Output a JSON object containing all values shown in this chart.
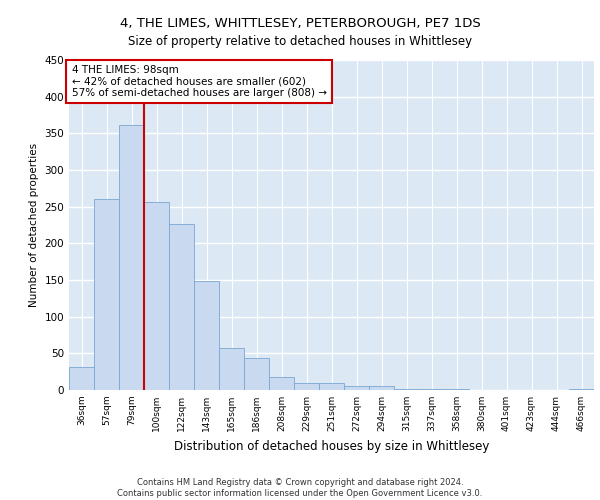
{
  "title_line1": "4, THE LIMES, WHITTLESEY, PETERBOROUGH, PE7 1DS",
  "title_line2": "Size of property relative to detached houses in Whittlesey",
  "xlabel": "Distribution of detached houses by size in Whittlesey",
  "ylabel": "Number of detached properties",
  "categories": [
    "36sqm",
    "57sqm",
    "79sqm",
    "100sqm",
    "122sqm",
    "143sqm",
    "165sqm",
    "186sqm",
    "208sqm",
    "229sqm",
    "251sqm",
    "272sqm",
    "294sqm",
    "315sqm",
    "337sqm",
    "358sqm",
    "380sqm",
    "401sqm",
    "423sqm",
    "444sqm",
    "466sqm"
  ],
  "values": [
    31,
    260,
    362,
    257,
    226,
    148,
    57,
    44,
    18,
    10,
    10,
    6,
    5,
    2,
    1,
    1,
    0,
    0,
    0,
    0,
    1
  ],
  "bar_color": "#c9d9f0",
  "bar_edge_color": "#7aa6d4",
  "vline_x": 2.5,
  "vline_color": "#cc0000",
  "annotation_text": "4 THE LIMES: 98sqm\n← 42% of detached houses are smaller (602)\n57% of semi-detached houses are larger (808) →",
  "annotation_box_color": "#ffffff",
  "annotation_box_edge": "#cc0000",
  "ylim": [
    0,
    450
  ],
  "yticks": [
    0,
    50,
    100,
    150,
    200,
    250,
    300,
    350,
    400,
    450
  ],
  "grid_color": "#ffffff",
  "bg_color": "#dce9f5",
  "footer": "Contains HM Land Registry data © Crown copyright and database right 2024.\nContains public sector information licensed under the Open Government Licence v3.0."
}
